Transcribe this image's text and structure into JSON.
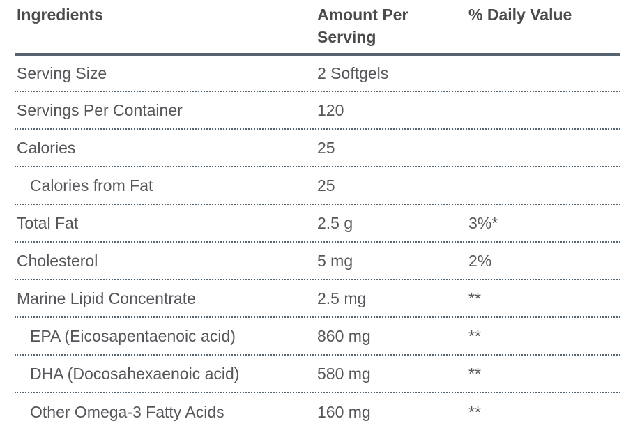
{
  "table": {
    "headers": {
      "ingredients": "Ingredients",
      "amount_per_serving": "Amount Per Serving",
      "daily_value": "% Daily Value"
    },
    "rows": [
      {
        "ingredient": "Serving Size",
        "amount": "2 Softgels",
        "daily_value": "",
        "indent": false
      },
      {
        "ingredient": "Servings Per Container",
        "amount": "120",
        "daily_value": "",
        "indent": false
      },
      {
        "ingredient": "Calories",
        "amount": "25",
        "daily_value": "",
        "indent": false
      },
      {
        "ingredient": "Calories from Fat",
        "amount": "25",
        "daily_value": "",
        "indent": true
      },
      {
        "ingredient": "Total Fat",
        "amount": "2.5 g",
        "daily_value": "3%*",
        "indent": false
      },
      {
        "ingredient": "Cholesterol",
        "amount": "5 mg",
        "daily_value": "2%",
        "indent": false
      },
      {
        "ingredient": "Marine Lipid Concentrate",
        "amount": "2.5 mg",
        "daily_value": "**",
        "indent": false
      },
      {
        "ingredient": "EPA (Eicosapentaenoic acid)",
        "amount": "860 mg",
        "daily_value": "**",
        "indent": true
      },
      {
        "ingredient": "DHA (Docosahexaenoic acid)",
        "amount": "580 mg",
        "daily_value": "**",
        "indent": true
      },
      {
        "ingredient": "Other Omega-3 Fatty Acids",
        "amount": "160 mg",
        "daily_value": "**",
        "indent": true
      }
    ]
  },
  "colors": {
    "header_rule": "#57646f",
    "row_rule": "#566572",
    "header_text": "#4a4b4d",
    "body_text": "#54565a",
    "background": "#ffffff"
  }
}
